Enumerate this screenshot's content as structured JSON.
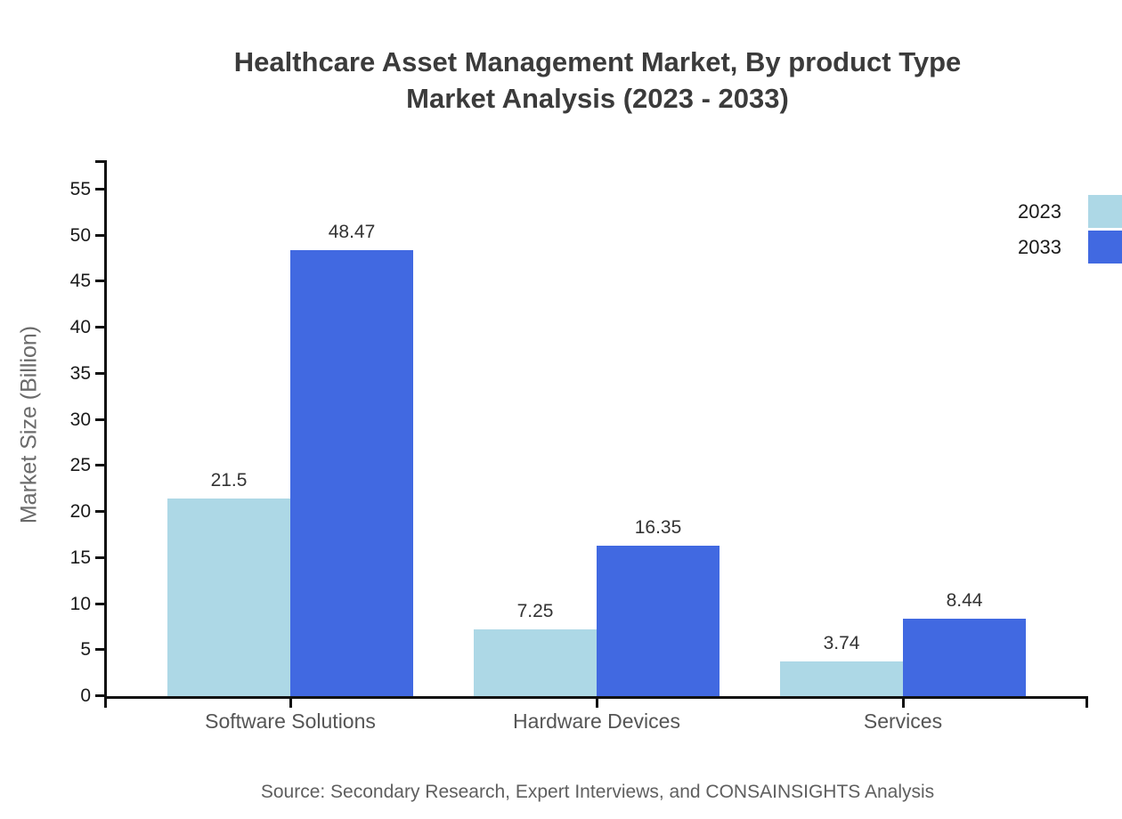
{
  "title": {
    "line1": "Healthcare Asset Management Market, By product Type",
    "line2": "Market Analysis (2023 - 2033)"
  },
  "source": "Source: Secondary Research, Expert Interviews, and CONSAINSIGHTS Analysis",
  "chart_data": {
    "type": "bar",
    "title": "Healthcare Asset Management Market, By product Type Market Analysis (2023 - 2033)",
    "categories": [
      "Software Solutions",
      "Hardware Devices",
      "Services"
    ],
    "series": [
      {
        "name": "2023",
        "color": "#ADD8E6",
        "values": [
          21.5,
          7.25,
          3.74
        ]
      },
      {
        "name": "2033",
        "color": "#4169E1",
        "values": [
          48.47,
          16.35,
          8.44
        ]
      }
    ],
    "xlabel": "",
    "ylabel": "Market Size (Billion)",
    "ylim": [
      0,
      58
    ],
    "yticks": [
      0,
      5,
      10,
      15,
      20,
      25,
      30,
      35,
      40,
      45,
      50,
      55
    ],
    "value_labels": true,
    "grid": false,
    "legend_position": "top-right",
    "axis_color": "#111111"
  }
}
